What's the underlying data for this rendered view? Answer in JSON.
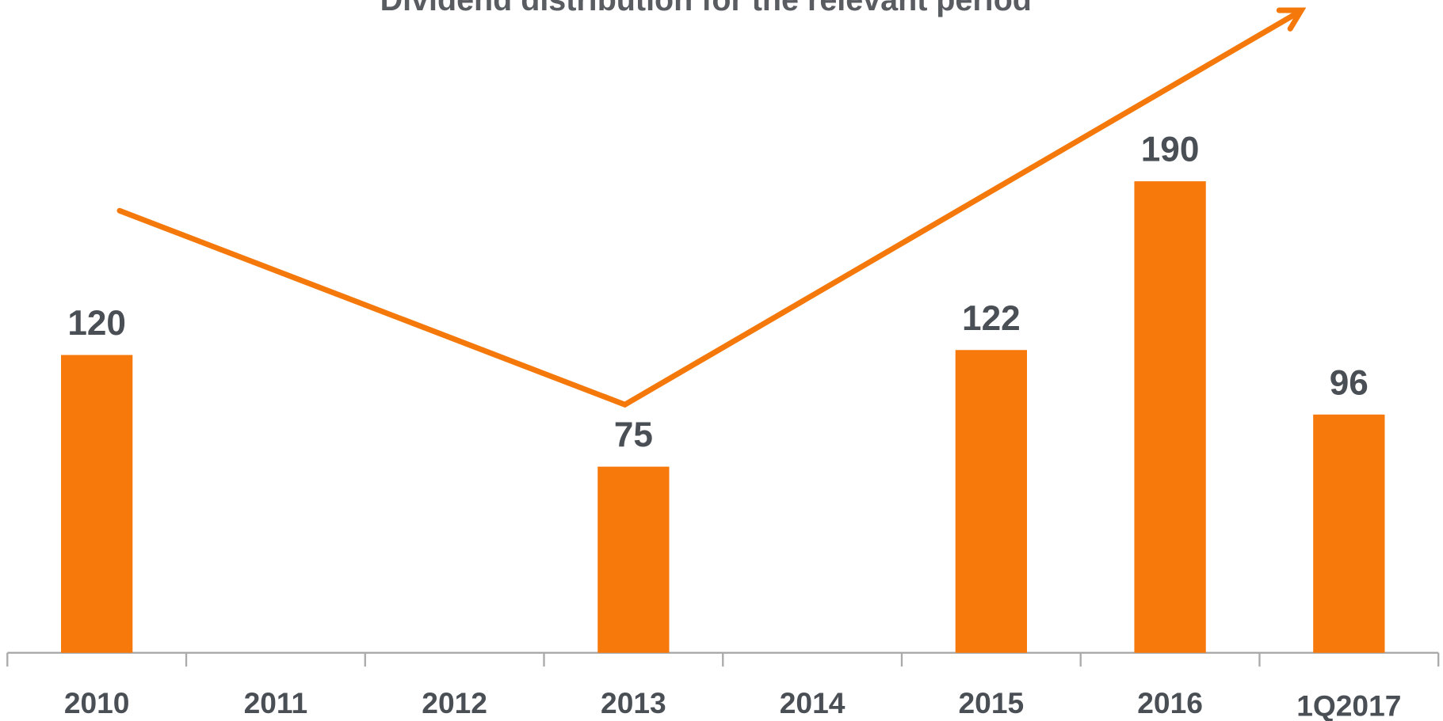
{
  "chart_data": {
    "type": "bar",
    "title": "Dividend distribution for the relevant period",
    "categories": [
      "2010",
      "2011",
      "2012",
      "2013",
      "2014",
      "2015",
      "2016",
      "1Q2017"
    ],
    "values": [
      120,
      null,
      null,
      75,
      null,
      122,
      190,
      96
    ],
    "color": "#f7790b"
  }
}
